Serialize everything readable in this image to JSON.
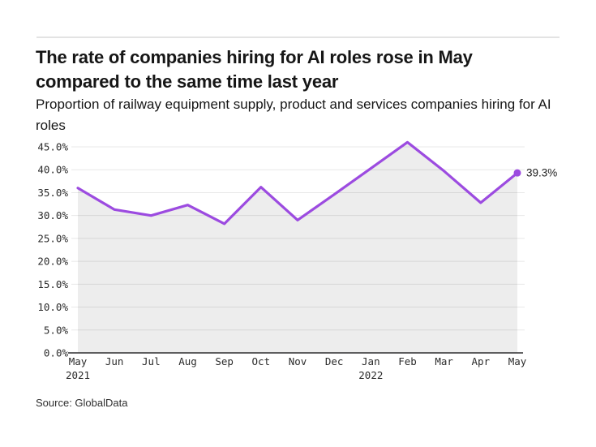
{
  "header": {
    "title": "The rate of companies hiring for AI roles rose in May compared to the same time last year",
    "subtitle": "Proportion of railway equipment supply, product and services companies hiring for AI roles"
  },
  "footer": {
    "source": "Source: GlobalData"
  },
  "chart_data": {
    "type": "line",
    "title": "The rate of companies hiring for AI roles rose in May compared to the same time last year",
    "subtitle": "Proportion of railway equipment supply, product and services companies hiring for AI roles",
    "categories": [
      "May",
      "Jun",
      "Jul",
      "Aug",
      "Sep",
      "Oct",
      "Nov",
      "Dec",
      "Jan",
      "Feb",
      "Mar",
      "Apr",
      "May"
    ],
    "year_sublabels": [
      {
        "index": 0,
        "label": "2021"
      },
      {
        "index": 8,
        "label": "2022"
      }
    ],
    "series": [
      {
        "name": "Proportion of companies hiring for AI roles",
        "values": [
          36.0,
          31.3,
          30.0,
          32.3,
          28.2,
          36.2,
          29.0,
          34.6,
          40.3,
          46.0,
          39.7,
          32.8,
          39.3
        ]
      }
    ],
    "last_point_label": "39.3%",
    "ytick_labels": [
      "0.0%",
      "5.0%",
      "10.0%",
      "15.0%",
      "20.0%",
      "25.0%",
      "30.0%",
      "35.0%",
      "40.0%",
      "45.0%"
    ],
    "ylim": [
      0,
      45
    ],
    "ytick_step": 5,
    "xlabel": "",
    "ylabel": "",
    "grid": true,
    "legend": false,
    "area_fill_under_line": true
  },
  "colors": {
    "line": "#9C4BE0",
    "marker": "#9C4BE0",
    "area_fill": "rgba(0,0,0,0.07)",
    "gridline": "#e8e8e8",
    "axis_line": "#2e2e30",
    "tick_text": "#2b2b2b",
    "annotation_text": "#1d1d1d",
    "divider": "#e3e3e3"
  }
}
